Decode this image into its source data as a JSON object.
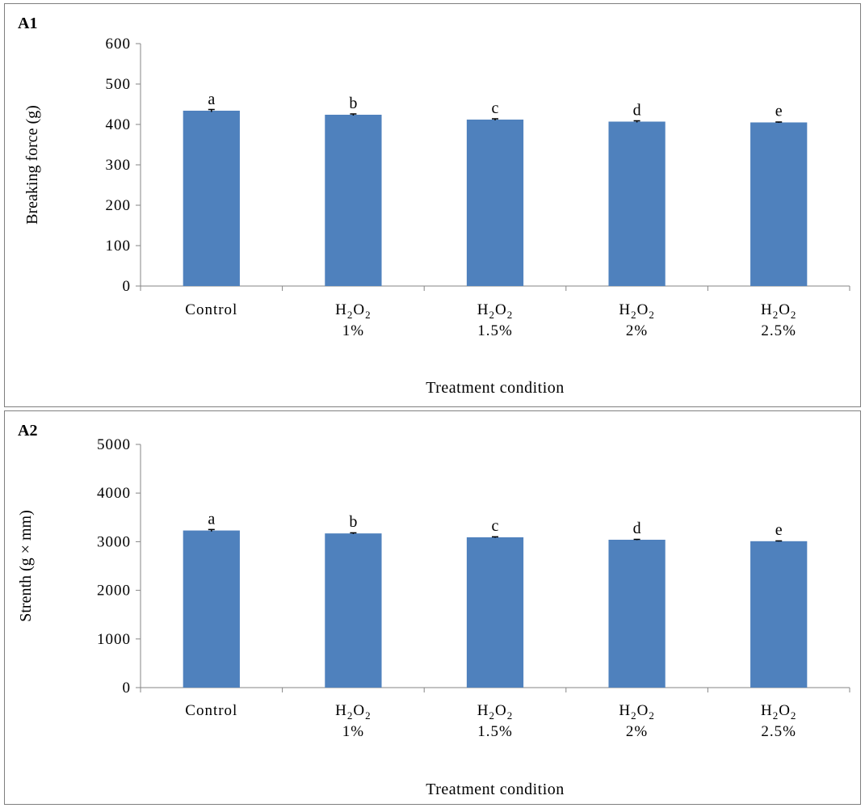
{
  "chart_data": [
    {
      "type": "bar",
      "panel_label": "A1",
      "ylabel": "Breaking force (g)",
      "xlabel": "Treatment condition",
      "ylim": [
        0,
        600
      ],
      "yticks": [
        0,
        100,
        200,
        300,
        400,
        500,
        600
      ],
      "categories": [
        {
          "base": "Control",
          "sub": "",
          "line2": ""
        },
        {
          "base": "H",
          "sub": "2",
          "base2": "O",
          "sub2": "2",
          "line2": "1%"
        },
        {
          "base": "H",
          "sub": "2",
          "base2": "O",
          "sub2": "2",
          "line2": "1.5%"
        },
        {
          "base": "H",
          "sub": "2",
          "base2": "O",
          "sub2": "2",
          "line2": "2%"
        },
        {
          "base": "H",
          "sub": "2",
          "base2": "O",
          "sub2": "2",
          "line2": "2.5%"
        }
      ],
      "values": [
        434,
        424,
        412,
        407,
        405
      ],
      "errors": [
        3,
        2,
        2,
        2,
        1
      ],
      "letters": [
        "a",
        "b",
        "c",
        "d",
        "e"
      ],
      "bar_color": "#4f81bd",
      "grid": false,
      "legend": "none"
    },
    {
      "type": "bar",
      "panel_label": "A2",
      "ylabel": "Strenth (g × mm)",
      "xlabel": "Treatment condition",
      "ylim": [
        0,
        5000
      ],
      "yticks": [
        0,
        1000,
        2000,
        3000,
        4000,
        5000
      ],
      "categories": [
        {
          "base": "Control",
          "sub": "",
          "line2": ""
        },
        {
          "base": "H",
          "sub": "2",
          "base2": "O",
          "sub2": "2",
          "line2": "1%"
        },
        {
          "base": "H",
          "sub": "2",
          "base2": "O",
          "sub2": "2",
          "line2": "1.5%"
        },
        {
          "base": "H",
          "sub": "2",
          "base2": "O",
          "sub2": "2",
          "line2": "2%"
        },
        {
          "base": "H",
          "sub": "2",
          "base2": "O",
          "sub2": "2",
          "line2": "2.5%"
        }
      ],
      "values": [
        3230,
        3170,
        3090,
        3040,
        3010
      ],
      "errors": [
        20,
        12,
        10,
        8,
        6
      ],
      "letters": [
        "a",
        "b",
        "c",
        "d",
        "e"
      ],
      "bar_color": "#4f81bd",
      "grid": false,
      "legend": "none"
    }
  ]
}
